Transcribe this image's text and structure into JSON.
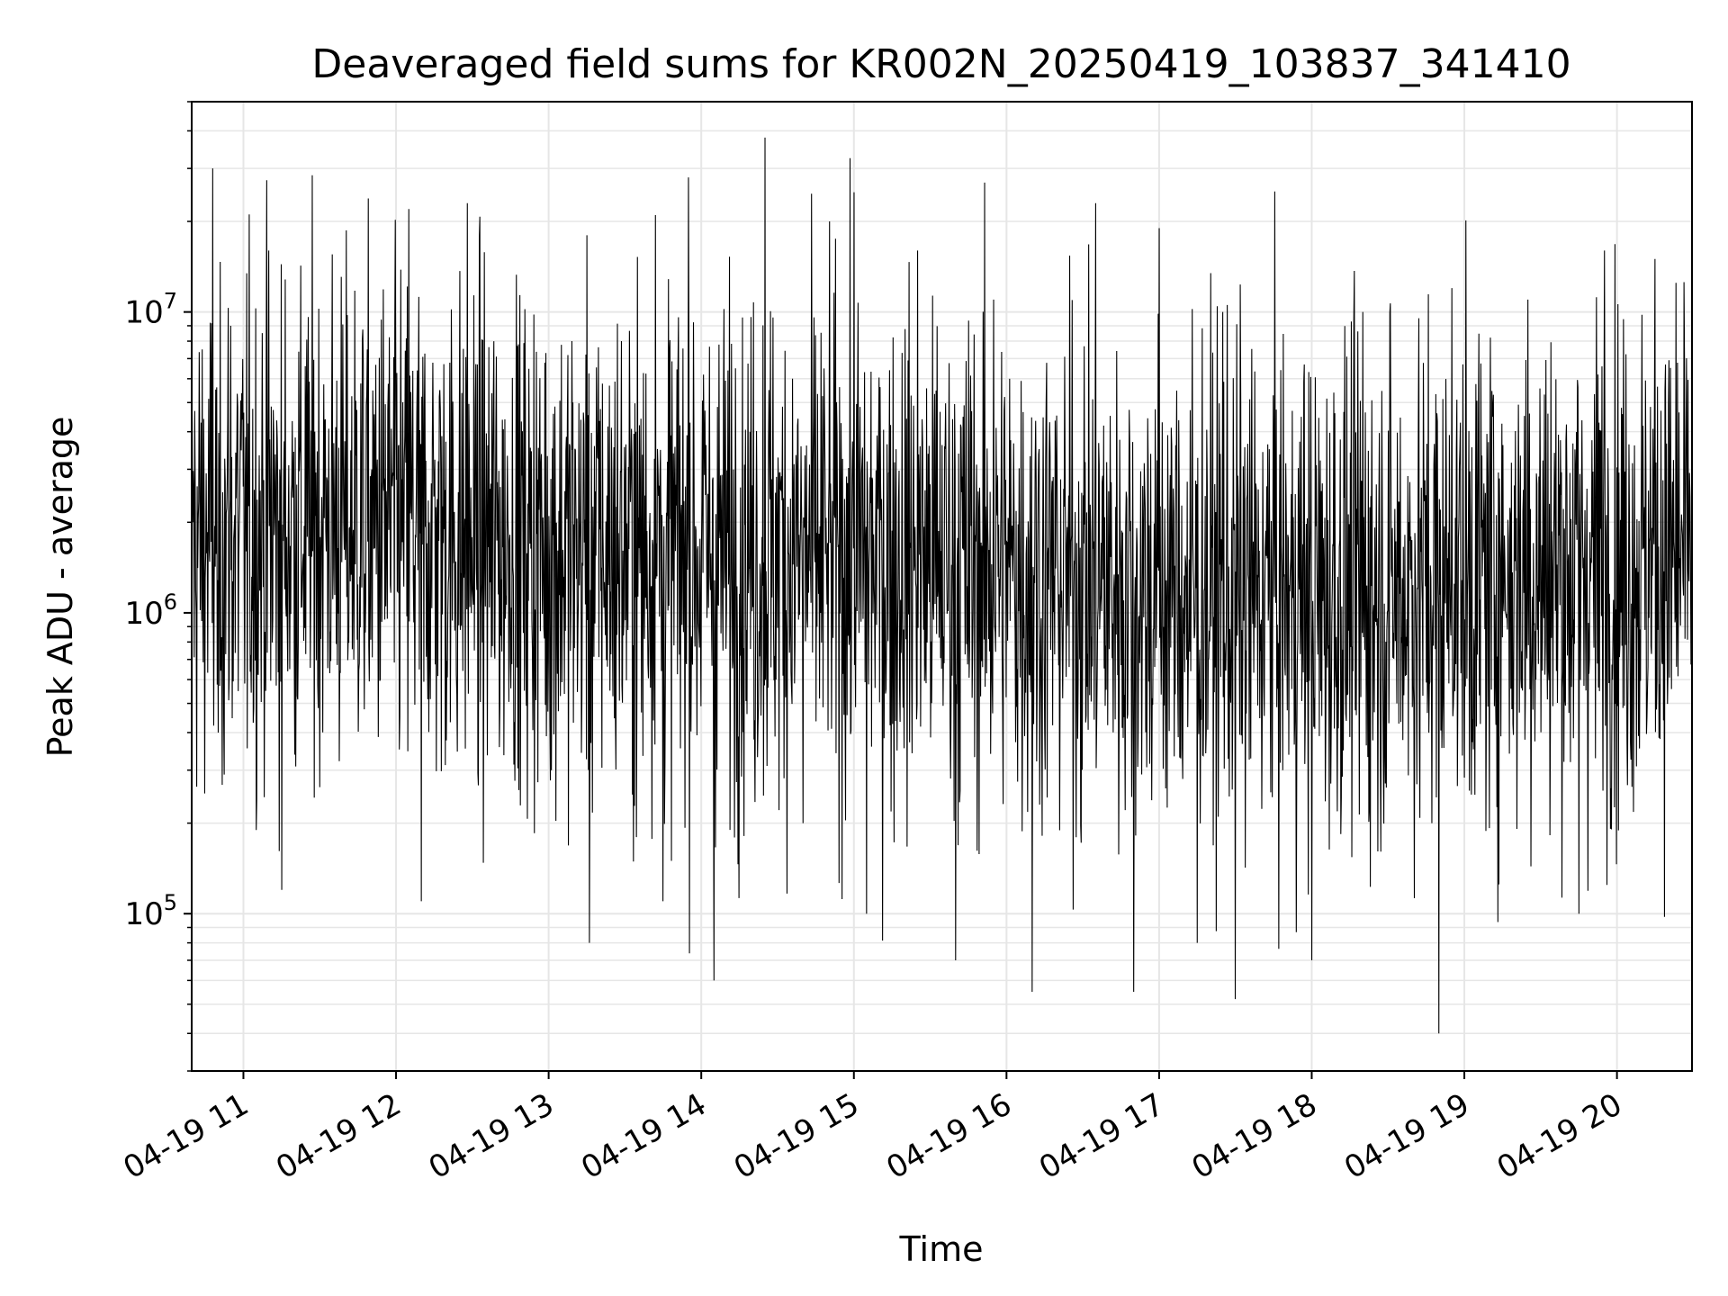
{
  "chart_data": {
    "type": "line",
    "title": "Deaveraged field sums for KR002N_20250419_103837_341410",
    "xlabel": "Time",
    "ylabel": "Peak ADU - average",
    "yscale": "log",
    "ylim": [
      30000,
      50000000
    ],
    "xlim": [
      "2025-04-19 10:39:40",
      "2025-04-19 20:29:30"
    ],
    "grid": true,
    "line_color": "#000000",
    "x_ticks": [
      {
        "value": "2025-04-19 11:00",
        "label": "04-19 11"
      },
      {
        "value": "2025-04-19 12:00",
        "label": "04-19 12"
      },
      {
        "value": "2025-04-19 13:00",
        "label": "04-19 13"
      },
      {
        "value": "2025-04-19 14:00",
        "label": "04-19 14"
      },
      {
        "value": "2025-04-19 15:00",
        "label": "04-19 15"
      },
      {
        "value": "2025-04-19 16:00",
        "label": "04-19 16"
      },
      {
        "value": "2025-04-19 17:00",
        "label": "04-19 17"
      },
      {
        "value": "2025-04-19 18:00",
        "label": "04-19 18"
      },
      {
        "value": "2025-04-19 19:00",
        "label": "04-19 19"
      },
      {
        "value": "2025-04-19 20:00",
        "label": "04-19 20"
      }
    ],
    "y_ticks": [
      {
        "value": 100000,
        "base": "10",
        "exp": "5"
      },
      {
        "value": 1000000,
        "base": "10",
        "exp": "6"
      },
      {
        "value": 10000000,
        "base": "10",
        "exp": "7"
      }
    ],
    "series": [
      {
        "x": [
          "2025-04-19 10:40",
          "2025-04-19 10:48",
          "2025-04-19 10:50",
          "2025-04-19 10:52",
          "2025-04-19 10:55",
          "2025-04-19 11:10",
          "2025-04-19 11:15",
          "2025-04-19 11:28",
          "2025-04-19 11:40",
          "2025-04-19 12:05",
          "2025-04-19 12:10",
          "2025-04-19 12:28",
          "2025-04-19 12:45",
          "2025-04-19 13:15",
          "2025-04-19 13:16",
          "2025-04-19 13:42",
          "2025-04-19 13:45",
          "2025-04-19 13:55",
          "2025-04-19 14:05",
          "2025-04-19 14:25",
          "2025-04-19 14:40",
          "2025-04-19 15:00",
          "2025-04-19 15:05",
          "2025-04-19 15:25",
          "2025-04-19 15:40",
          "2025-04-19 15:55",
          "2025-04-19 16:10",
          "2025-04-19 16:25",
          "2025-04-19 16:35",
          "2025-04-19 16:50",
          "2025-04-19 17:00",
          "2025-04-19 17:15",
          "2025-04-19 17:25",
          "2025-04-19 17:30",
          "2025-04-19 17:45",
          "2025-04-19 18:00",
          "2025-04-19 18:20",
          "2025-04-19 18:50",
          "2025-04-19 18:55",
          "2025-04-19 19:10",
          "2025-04-19 19:25",
          "2025-04-19 19:45",
          "2025-04-19 19:55",
          "2025-04-19 20:05",
          "2025-04-19 20:15",
          "2025-04-19 20:29"
        ],
        "y": [
          2000000,
          30000000,
          400000,
          1500000,
          9000000,
          16000000,
          120000,
          4000000,
          1500000,
          22000000,
          110000,
          23000000,
          700000,
          18000000,
          80000,
          21000000,
          110000,
          28000000,
          60000,
          38000000,
          200000,
          25000000,
          100000,
          16000000,
          70000,
          11000000,
          55000,
          2000000,
          23000000,
          55000,
          19000000,
          80000,
          10000000,
          52000,
          3000000,
          70000,
          10000000,
          40000,
          12000000,
          3000000,
          11000000,
          100000,
          16000000,
          2000000,
          15000000,
          1500000
        ]
      }
    ]
  }
}
